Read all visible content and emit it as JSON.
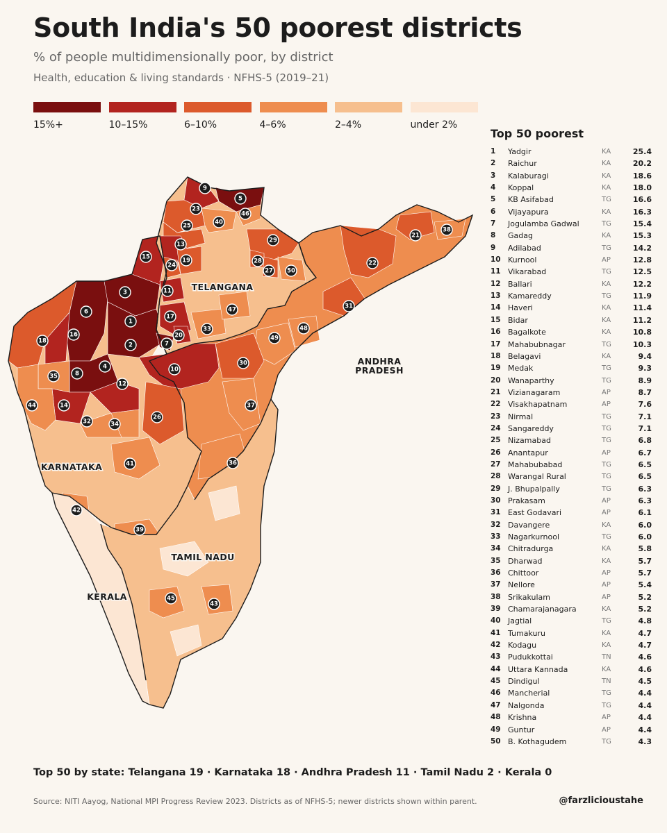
{
  "header": {
    "title": "South India's 50 poorest districts",
    "subtitle": "% of people multidimensionally poor, by district",
    "subsubtitle": "Health, education & living standards · NFHS-5 (2019–21)"
  },
  "legend": [
    {
      "label": "15%+",
      "color": "#7a0f0f"
    },
    {
      "label": "10–15%",
      "color": "#b2241f"
    },
    {
      "label": "6–10%",
      "color": "#dc5a2c"
    },
    {
      "label": "4–6%",
      "color": "#ee8d4f"
    },
    {
      "label": "2–4%",
      "color": "#f6bf8e"
    },
    {
      "label": "under 2%",
      "color": "#fce6d3"
    }
  ],
  "map": {
    "state_labels": [
      "TELANGANA",
      "ANDHRA",
      "PRADESH",
      "KARNATAKA",
      "TAMIL NADU",
      "KERALA"
    ]
  },
  "ranking": {
    "heading": "Top 50 poorest",
    "rows": [
      {
        "rank": "1",
        "name": "Yadgir",
        "state": "KA",
        "value": "25.4"
      },
      {
        "rank": "2",
        "name": "Raichur",
        "state": "KA",
        "value": "20.2"
      },
      {
        "rank": "3",
        "name": "Kalaburagi",
        "state": "KA",
        "value": "18.6"
      },
      {
        "rank": "4",
        "name": "Koppal",
        "state": "KA",
        "value": "18.0"
      },
      {
        "rank": "5",
        "name": "KB Asifabad",
        "state": "TG",
        "value": "16.6"
      },
      {
        "rank": "6",
        "name": "Vijayapura",
        "state": "KA",
        "value": "16.3"
      },
      {
        "rank": "7",
        "name": "Jogulamba Gadwal",
        "state": "TG",
        "value": "15.4"
      },
      {
        "rank": "8",
        "name": "Gadag",
        "state": "KA",
        "value": "15.3"
      },
      {
        "rank": "9",
        "name": "Adilabad",
        "state": "TG",
        "value": "14.2"
      },
      {
        "rank": "10",
        "name": "Kurnool",
        "state": "AP",
        "value": "12.8"
      },
      {
        "rank": "11",
        "name": "Vikarabad",
        "state": "TG",
        "value": "12.5"
      },
      {
        "rank": "12",
        "name": "Ballari",
        "state": "KA",
        "value": "12.2"
      },
      {
        "rank": "13",
        "name": "Kamareddy",
        "state": "TG",
        "value": "11.9"
      },
      {
        "rank": "14",
        "name": "Haveri",
        "state": "KA",
        "value": "11.4"
      },
      {
        "rank": "15",
        "name": "Bidar",
        "state": "KA",
        "value": "11.2"
      },
      {
        "rank": "16",
        "name": "Bagalkote",
        "state": "KA",
        "value": "10.8"
      },
      {
        "rank": "17",
        "name": "Mahabubnagar",
        "state": "TG",
        "value": "10.3"
      },
      {
        "rank": "18",
        "name": "Belagavi",
        "state": "KA",
        "value": "9.4"
      },
      {
        "rank": "19",
        "name": "Medak",
        "state": "TG",
        "value": "9.3"
      },
      {
        "rank": "20",
        "name": "Wanaparthy",
        "state": "TG",
        "value": "8.9"
      },
      {
        "rank": "21",
        "name": "Vizianagaram",
        "state": "AP",
        "value": "8.7"
      },
      {
        "rank": "22",
        "name": "Visakhapatnam",
        "state": "AP",
        "value": "7.6"
      },
      {
        "rank": "23",
        "name": "Nirmal",
        "state": "TG",
        "value": "7.1"
      },
      {
        "rank": "24",
        "name": "Sangareddy",
        "state": "TG",
        "value": "7.1"
      },
      {
        "rank": "25",
        "name": "Nizamabad",
        "state": "TG",
        "value": "6.8"
      },
      {
        "rank": "26",
        "name": "Anantapur",
        "state": "AP",
        "value": "6.7"
      },
      {
        "rank": "27",
        "name": "Mahabubabad",
        "state": "TG",
        "value": "6.5"
      },
      {
        "rank": "28",
        "name": "Warangal Rural",
        "state": "TG",
        "value": "6.5"
      },
      {
        "rank": "29",
        "name": "J. Bhupalpally",
        "state": "TG",
        "value": "6.3"
      },
      {
        "rank": "30",
        "name": "Prakasam",
        "state": "AP",
        "value": "6.3"
      },
      {
        "rank": "31",
        "name": "East Godavari",
        "state": "AP",
        "value": "6.1"
      },
      {
        "rank": "32",
        "name": "Davangere",
        "state": "KA",
        "value": "6.0"
      },
      {
        "rank": "33",
        "name": "Nagarkurnool",
        "state": "TG",
        "value": "6.0"
      },
      {
        "rank": "34",
        "name": "Chitradurga",
        "state": "KA",
        "value": "5.8"
      },
      {
        "rank": "35",
        "name": "Dharwad",
        "state": "KA",
        "value": "5.7"
      },
      {
        "rank": "36",
        "name": "Chittoor",
        "state": "AP",
        "value": "5.7"
      },
      {
        "rank": "37",
        "name": "Nellore",
        "state": "AP",
        "value": "5.4"
      },
      {
        "rank": "38",
        "name": "Srikakulam",
        "state": "AP",
        "value": "5.2"
      },
      {
        "rank": "39",
        "name": "Chamarajanagara",
        "state": "KA",
        "value": "5.2"
      },
      {
        "rank": "40",
        "name": "Jagtial",
        "state": "TG",
        "value": "4.8"
      },
      {
        "rank": "41",
        "name": "Tumakuru",
        "state": "KA",
        "value": "4.7"
      },
      {
        "rank": "42",
        "name": "Kodagu",
        "state": "KA",
        "value": "4.7"
      },
      {
        "rank": "43",
        "name": "Pudukkottai",
        "state": "TN",
        "value": "4.6"
      },
      {
        "rank": "44",
        "name": "Uttara Kannada",
        "state": "KA",
        "value": "4.6"
      },
      {
        "rank": "45",
        "name": "Dindigul",
        "state": "TN",
        "value": "4.5"
      },
      {
        "rank": "46",
        "name": "Mancherial",
        "state": "TG",
        "value": "4.4"
      },
      {
        "rank": "47",
        "name": "Nalgonda",
        "state": "TG",
        "value": "4.4"
      },
      {
        "rank": "48",
        "name": "Krishna",
        "state": "AP",
        "value": "4.4"
      },
      {
        "rank": "49",
        "name": "Guntur",
        "state": "AP",
        "value": "4.4"
      },
      {
        "rank": "50",
        "name": "B. Kothagudem",
        "state": "TG",
        "value": "4.3"
      }
    ]
  },
  "footer": {
    "by_state": "Top 50 by state:  Telangana 19  ·  Karnataka 18  ·  Andhra Pradesh 11  ·  Tamil Nadu 2  ·  Kerala 0",
    "source": "Source: NITI Aayog, National MPI Progress Review 2023. Districts as of NFHS-5; newer districts shown within parent.",
    "handle": "@farzlicioustahe"
  }
}
